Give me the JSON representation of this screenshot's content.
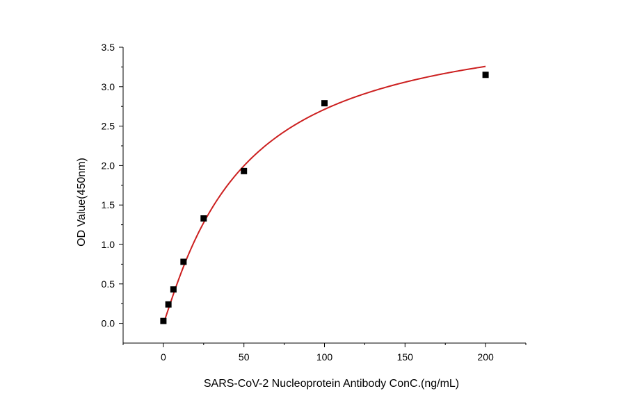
{
  "chart_data": {
    "type": "scatter",
    "title": "",
    "xlabel": "SARS-CoV-2 Nucleoprotein Antibody ConC.(ng/mL)",
    "ylabel": "OD Value(450nm)",
    "xlim": [
      -25,
      225
    ],
    "ylim": [
      -0.25,
      3.5
    ],
    "x_ticks": [
      0,
      50,
      100,
      150,
      200
    ],
    "x_tick_labels": [
      "0",
      "50",
      "100",
      "150",
      "200"
    ],
    "y_ticks": [
      0.0,
      0.5,
      1.0,
      1.5,
      2.0,
      2.5,
      3.0,
      3.5
    ],
    "y_tick_labels": [
      "0.0",
      "0.5",
      "1.0",
      "1.5",
      "2.0",
      "2.5",
      "3.0",
      "3.5"
    ],
    "grid": false,
    "legend": "none",
    "series": [
      {
        "kind": "points",
        "marker": "square",
        "color": "#000000",
        "x": [
          0,
          3.125,
          6.25,
          12.5,
          25,
          50,
          100,
          200
        ],
        "y": [
          0.03,
          0.24,
          0.43,
          0.78,
          1.33,
          1.93,
          2.79,
          3.15
        ]
      },
      {
        "kind": "fit-curve",
        "color": "#cc1f1f",
        "model": "4PL",
        "params": {
          "A": 0.0,
          "B": 1.1,
          "C": 49.0,
          "D": 3.95
        },
        "x_range": [
          0,
          200
        ]
      }
    ]
  }
}
